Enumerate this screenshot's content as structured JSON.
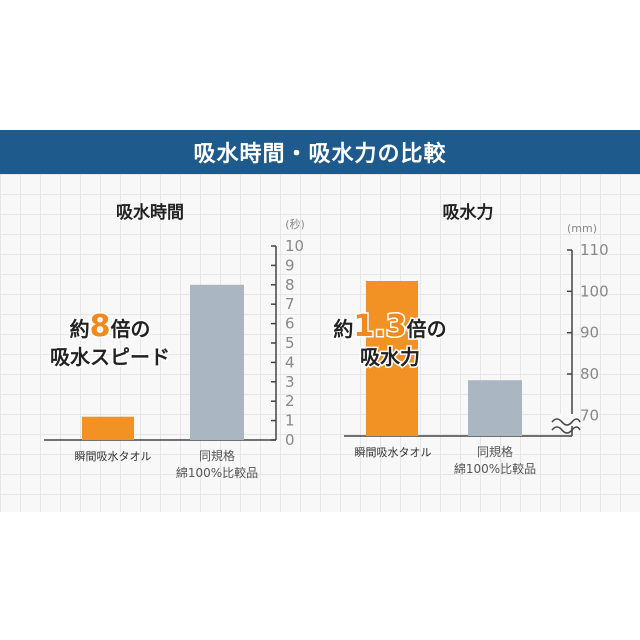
{
  "banner": {
    "title": "吸水時間・吸水力の比較"
  },
  "chart_data": [
    {
      "type": "bar",
      "title": "吸水時間",
      "unit": "(秒)",
      "categories": [
        "瞬間吸水タオル",
        "同規格\n綿100%比較品"
      ],
      "values": [
        1.2,
        8
      ],
      "colors": [
        "#f39224",
        "#aab6c2"
      ],
      "ylim": [
        0,
        10
      ],
      "yticks": [
        0,
        1,
        2,
        3,
        4,
        5,
        6,
        7,
        8,
        9,
        10
      ],
      "callout": {
        "pre": "約",
        "value": "8",
        "post_line1": "倍の",
        "line2": "吸水スピード"
      }
    },
    {
      "type": "bar",
      "title": "吸水力",
      "unit": "(mm)",
      "categories": [
        "瞬間吸水タオル",
        "同規格\n綿100%比較品"
      ],
      "values": [
        102.5,
        78.5
      ],
      "colors": [
        "#f39224",
        "#aab6c2"
      ],
      "ylim": [
        65,
        110
      ],
      "axis_break": true,
      "yticks": [
        70,
        80,
        90,
        100,
        110
      ],
      "callout": {
        "pre": "約",
        "value": "1.3",
        "post_line1": "倍の",
        "line2": "吸水力"
      }
    }
  ]
}
